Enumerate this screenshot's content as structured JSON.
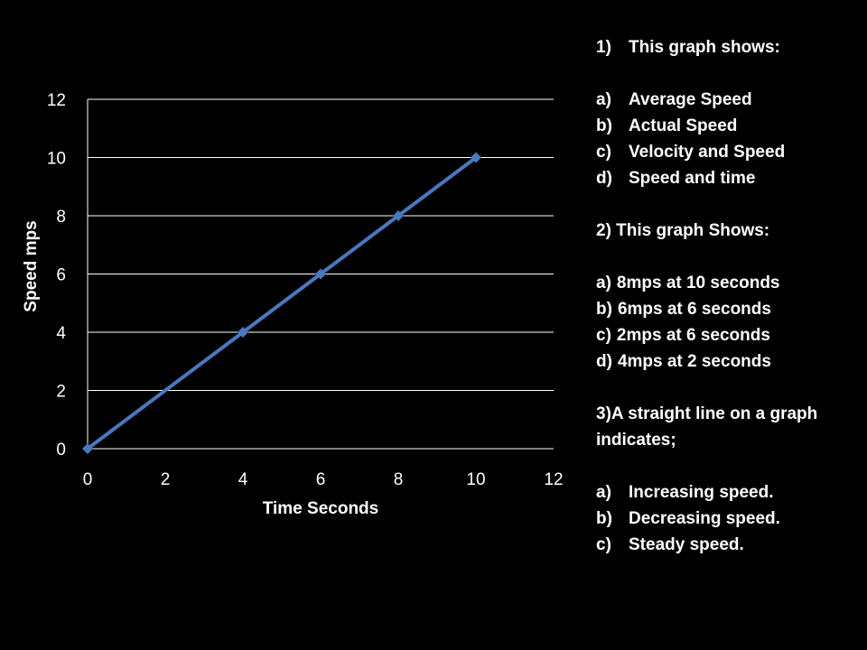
{
  "chart_data": {
    "type": "line",
    "title": "",
    "xlabel": "Time Seconds",
    "ylabel": "Speed    mps",
    "xlim": [
      0,
      12
    ],
    "ylim": [
      0,
      12
    ],
    "x_ticks": [
      "0",
      "2",
      "4",
      "6",
      "8",
      "10",
      "12"
    ],
    "y_ticks": [
      "0",
      "2",
      "4",
      "6",
      "8",
      "10",
      "12"
    ],
    "grid": "horizontal",
    "legend": "none",
    "series": [
      {
        "x": [
          0,
          4,
          6,
          8,
          10
        ],
        "y": [
          0,
          4,
          6,
          8,
          10
        ],
        "color": "#4a78bd",
        "marker": "diamond"
      }
    ]
  },
  "quiz": {
    "questions": [
      {
        "number": "1)",
        "text": "This graph shows:",
        "style": "hanging",
        "options": [
          {
            "marker": "a)",
            "text": "Average Speed"
          },
          {
            "marker": "b)",
            "text": "Actual Speed"
          },
          {
            "marker": "c)",
            "text": "Velocity and Speed"
          },
          {
            "marker": "d)",
            "text": "Speed and time"
          }
        ]
      },
      {
        "number": "",
        "text": "2) This graph Shows:",
        "style": "plain",
        "options": [
          {
            "marker": "a)",
            "text": "8mps at 10 seconds"
          },
          {
            "marker": "b)",
            "text": "6mps at 6 seconds"
          },
          {
            "marker": "c)",
            "text": "2mps at 6 seconds"
          },
          {
            "marker": "d)",
            "text": "4mps at 2 seconds"
          }
        ]
      },
      {
        "number": "",
        "text": "3)A straight line on a graph indicates;",
        "style": "hanging",
        "options": [
          {
            "marker": "a)",
            "text": "Increasing speed."
          },
          {
            "marker": "b)",
            "text": "Decreasing speed."
          },
          {
            "marker": "c)",
            "text": "Steady speed."
          }
        ]
      }
    ]
  },
  "colors": {
    "background": "#000000",
    "text": "#ffffff",
    "line": "#4a78bd",
    "grid": "#ffffff"
  }
}
